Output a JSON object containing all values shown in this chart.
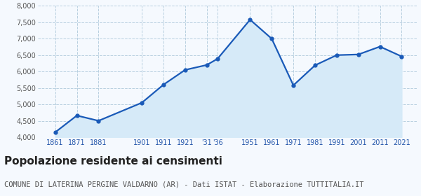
{
  "years": [
    1861,
    1871,
    1881,
    1901,
    1911,
    1921,
    1931,
    1936,
    1951,
    1961,
    1971,
    1981,
    1991,
    2001,
    2011,
    2021
  ],
  "population": [
    4150,
    4660,
    4500,
    5050,
    5600,
    6050,
    6200,
    6390,
    7580,
    7000,
    5580,
    6190,
    6500,
    6520,
    6760,
    6460
  ],
  "line_color": "#1a5ab8",
  "fill_color": "#d6eaf8",
  "marker_color": "#1a5ab8",
  "bg_color": "#f5f9fe",
  "grid_color": "#b8cfe0",
  "ylim": [
    4000,
    8000
  ],
  "yticks": [
    4000,
    4500,
    5000,
    5500,
    6000,
    6500,
    7000,
    7500,
    8000
  ],
  "x_tick_positions": [
    1861,
    1871,
    1881,
    1901,
    1911,
    1921,
    1931,
    1936,
    1951,
    1961,
    1971,
    1981,
    1991,
    2001,
    2011,
    2021
  ],
  "x_tick_labels": [
    "1861",
    "1871",
    "1881",
    "1901",
    "1911",
    "1921",
    "'31",
    "'36",
    "1951",
    "1961",
    "1971",
    "1981",
    "1991",
    "2001",
    "2011",
    "2021"
  ],
  "title": "Popolazione residente ai censimenti",
  "subtitle": "COMUNE DI LATERINA PERGINE VALDARNO (AR) - Dati ISTAT - Elaborazione TUTTITALIA.IT",
  "title_fontsize": 11,
  "subtitle_fontsize": 7.5
}
